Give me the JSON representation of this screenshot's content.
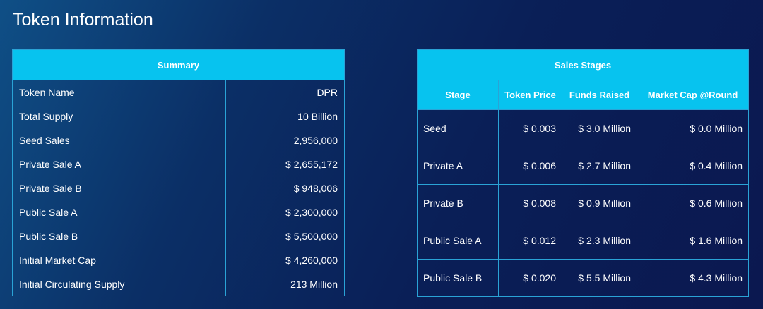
{
  "page": {
    "title": "Token Information"
  },
  "summary": {
    "title": "Summary",
    "rows": [
      {
        "label": "Token Name",
        "value": "DPR"
      },
      {
        "label": "Total Supply",
        "value": "10 Billion"
      },
      {
        "label": "Seed Sales",
        "value": "2,956,000"
      },
      {
        "label": "Private Sale A",
        "value": "$ 2,655,172"
      },
      {
        "label": "Private Sale B",
        "value": "$ 948,006"
      },
      {
        "label": "Public Sale A",
        "value": "$ 2,300,000"
      },
      {
        "label": "Public Sale B",
        "value": "$ 5,500,000"
      },
      {
        "label": "Initial Market Cap",
        "value": "$ 4,260,000"
      },
      {
        "label": "Initial Circulating Supply",
        "value": "213 Million"
      }
    ]
  },
  "sales_stages": {
    "title": "Sales Stages",
    "columns": [
      "Stage",
      "Token Price",
      "Funds Raised",
      "Market Cap @Round"
    ],
    "rows": [
      {
        "stage": "Seed",
        "price": "$ 0.003",
        "funds": "$ 3.0 Million",
        "market_cap": "$ 0.0 Million"
      },
      {
        "stage": "Private A",
        "price": "$ 0.006",
        "funds": "$ 2.7 Million",
        "market_cap": "$ 0.4 Million"
      },
      {
        "stage": "Private B",
        "price": "$ 0.008",
        "funds": "$ 0.9 Million",
        "market_cap": "$ 0.6 Million"
      },
      {
        "stage": "Public Sale A",
        "price": "$ 0.012",
        "funds": "$ 2.3 Million",
        "market_cap": "$ 1.6 Million"
      },
      {
        "stage": "Public Sale B",
        "price": "$ 0.020",
        "funds": "$ 5.5 Million",
        "market_cap": "$ 4.3 Million"
      }
    ]
  },
  "colors": {
    "header_bg": "#07c3ef",
    "border": "#2aa3d6",
    "background": "#0a1f57"
  }
}
